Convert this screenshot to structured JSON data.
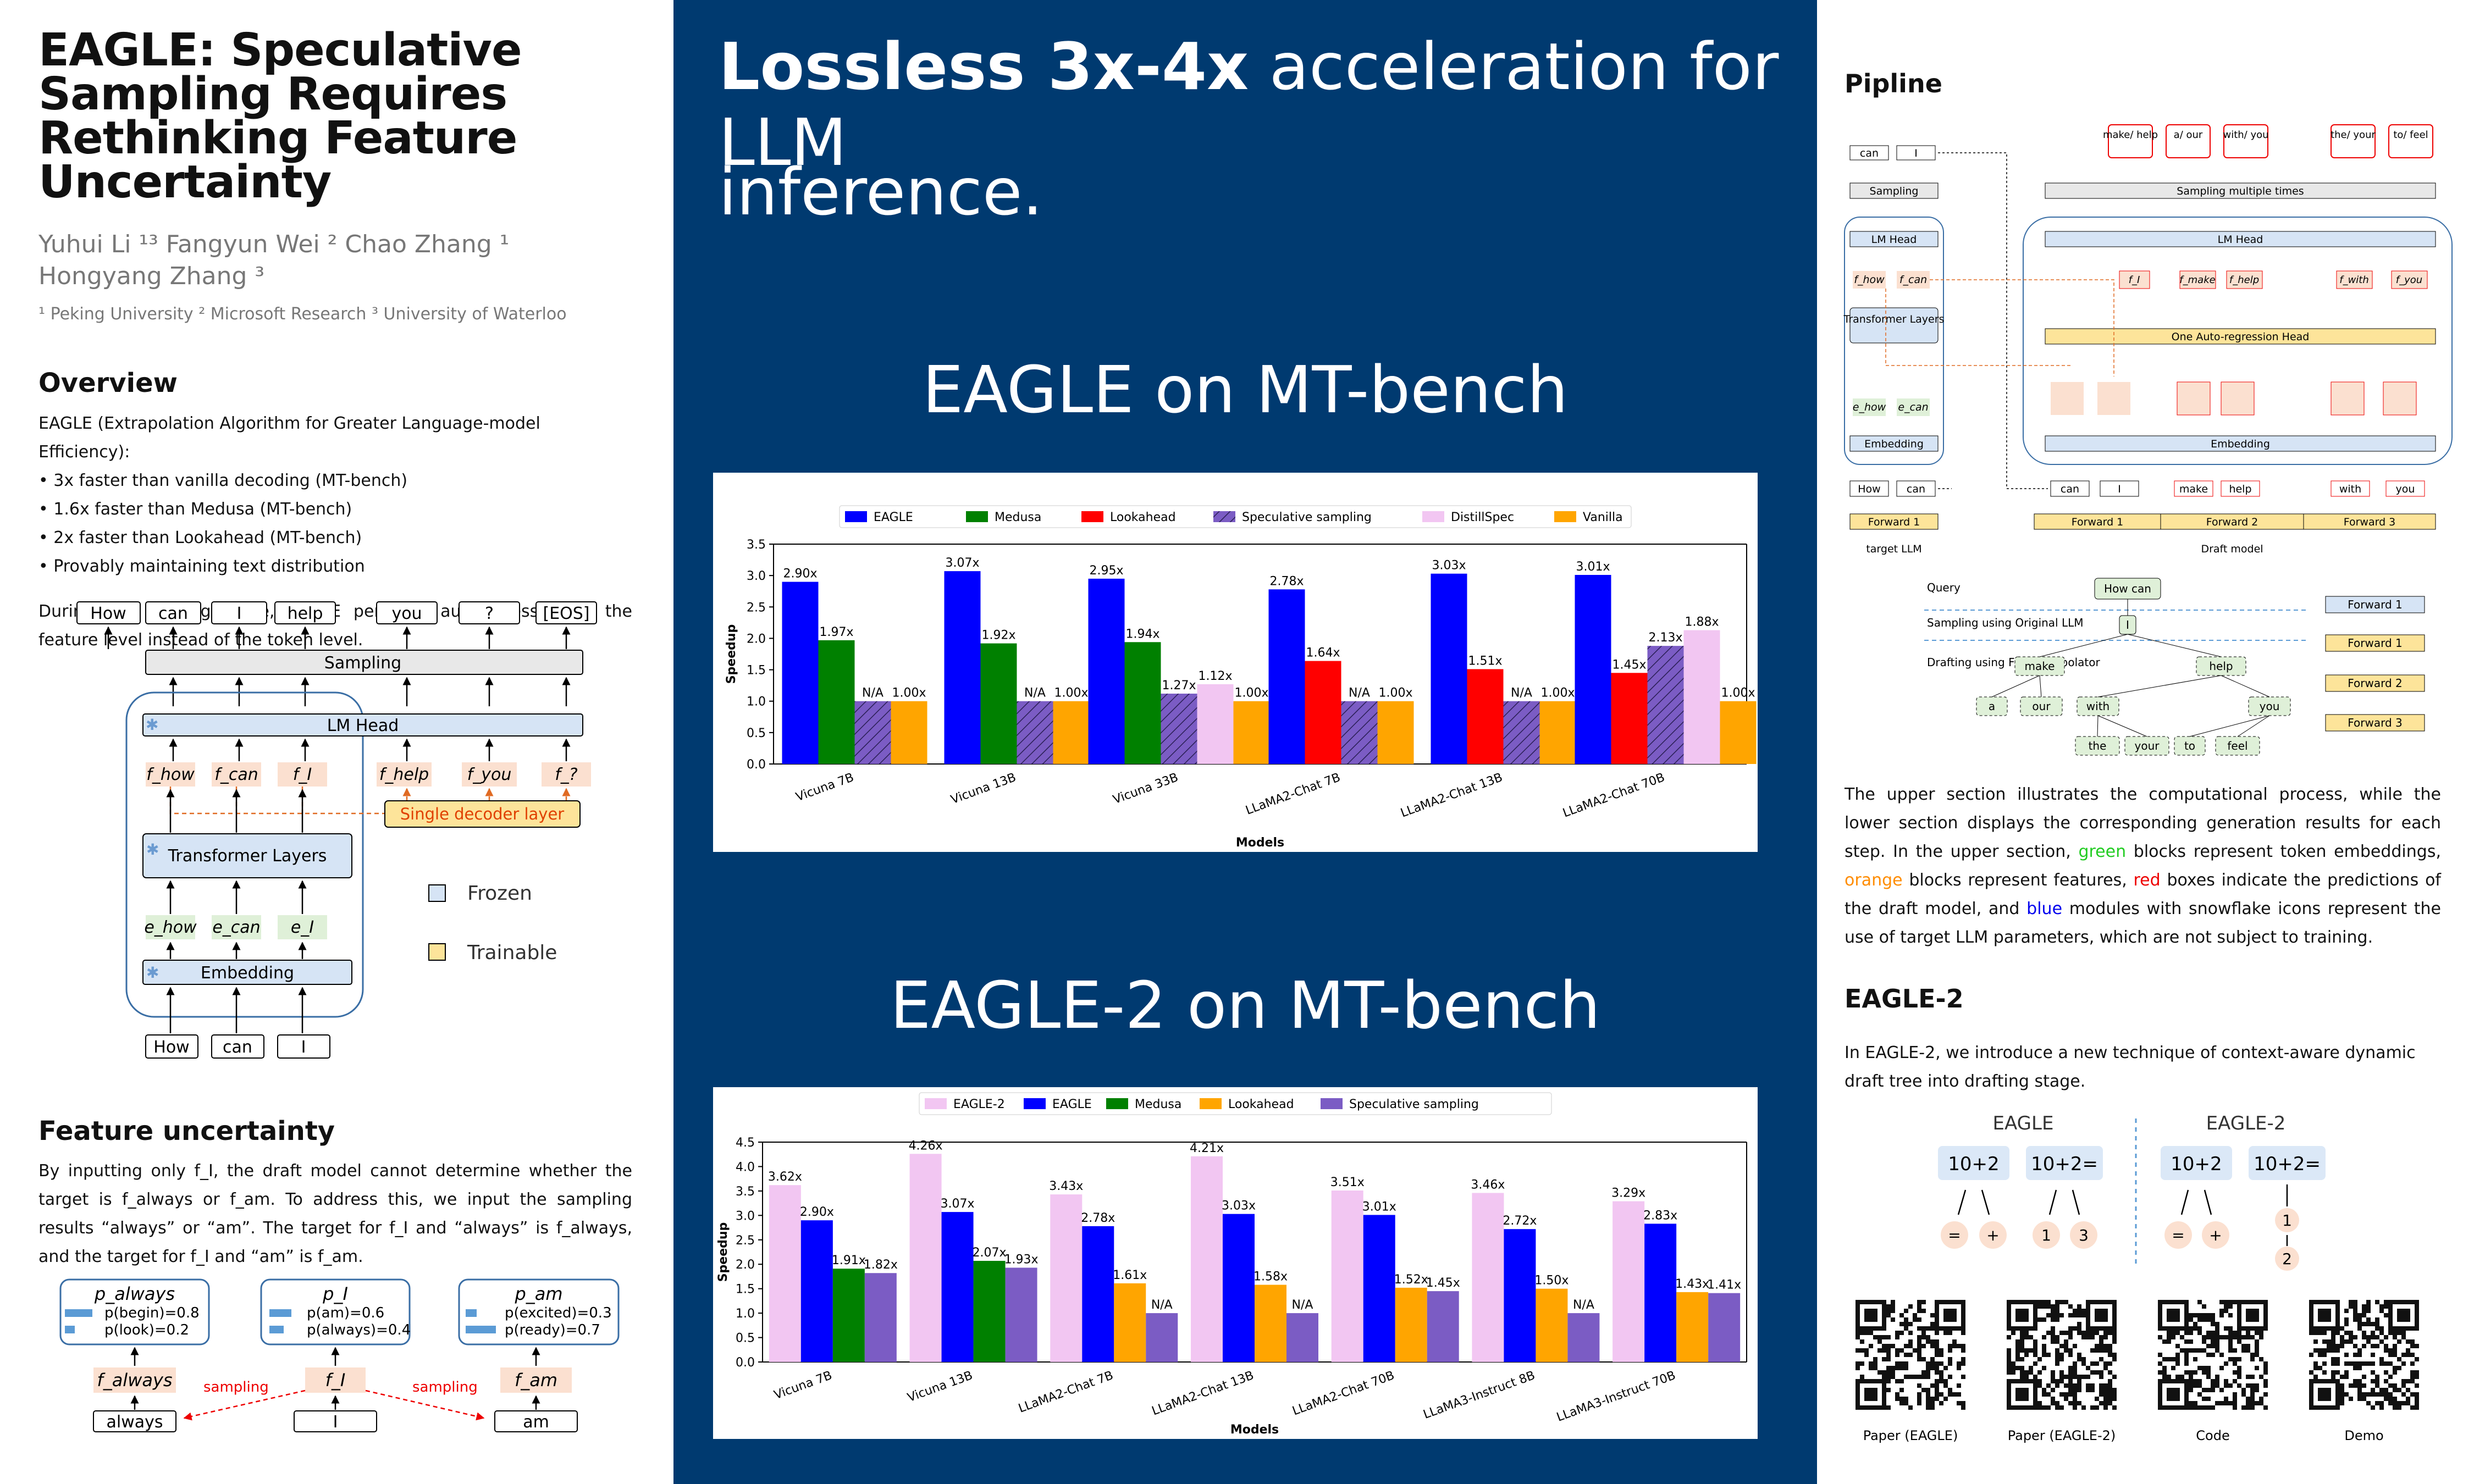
{
  "title": "EAGLE: Speculative Sampling Requires Rethinking Feature Uncertainty",
  "authors_line1": "Yuhui Li ¹³   Fangyun Wei ²   Chao Zhang ¹",
  "authors_line2": "Hongyang Zhang ³",
  "affiliations": "¹ Peking University  ² Microsoft Research  ³ University of Waterloo",
  "overview": {
    "heading": "Overview",
    "intro": "EAGLE (Extrapolation Algorithm for Greater Language-model Efficiency):",
    "bullets": [
      "• 3x faster than vanilla decoding (MT-bench)",
      "• 1.6x faster than Medusa (MT-bench)",
      "• 2x faster than Lookahead (MT-bench)",
      "• Provably maintaining text distribution"
    ],
    "para": "During the drafting stage, EAGLE performs autoregression at the feature level instead of the token level.",
    "fig": {
      "top_tokens": [
        "How",
        "can",
        "I",
        "help",
        "you",
        "?",
        "[EOS]"
      ],
      "sampling": "Sampling",
      "lm_head": "LM Head",
      "features": [
        "f_how",
        "f_can",
        "f_I",
        "f_help",
        "f_you",
        "f_?"
      ],
      "decoder": "Single decoder layer",
      "transformer": "Transformer Layers",
      "embeds": [
        "e_how",
        "e_can",
        "e_I"
      ],
      "embedding": "Embedding",
      "inputs": [
        "How",
        "can",
        "I"
      ],
      "legend_frozen": "Frozen",
      "legend_trainable": "Trainable"
    }
  },
  "feature_uncertainty": {
    "heading": "Feature uncertainty",
    "text": "By inputting only f_I, the draft model cannot determine whether the target is f_always or f_am. To address this, we input the sampling results “always” or “am”. The target for f_I and “always” is f_always, and the target for f_I and “am” is f_am.",
    "boxes": [
      {
        "title": "p_always",
        "rows": [
          "p(begin)=0.8",
          "p(look)=0.2"
        ]
      },
      {
        "title": "p_I",
        "rows": [
          "p(am)=0.6",
          "p(always)=0.4"
        ]
      },
      {
        "title": "p_am",
        "rows": [
          "p(excited)=0.3",
          "p(ready)=0.7"
        ]
      }
    ],
    "feats": [
      "f_always",
      "f_I",
      "f_am"
    ],
    "tokens": [
      "always",
      "I",
      "am"
    ],
    "sampling": "sampling"
  },
  "mid": {
    "headline_bold": "Lossless 3x-4x",
    "headline_rest": " acceleration for LLM",
    "headline_line2": "inference.",
    "chart1_title": "EAGLE on MT-bench",
    "chart2_title": "EAGLE-2 on MT-bench"
  },
  "chart_data": [
    {
      "type": "bar",
      "categories": [
        "Vicuna 7B",
        "Vicuna 13B",
        "Vicuna 33B",
        "LLaMA2-Chat 7B",
        "LLaMA2-Chat 13B",
        "LLaMA2-Chat 70B"
      ],
      "series": [
        {
          "name": "EAGLE",
          "color": "#0000ff",
          "values": [
            2.9,
            3.07,
            2.95,
            2.78,
            3.03,
            3.01
          ]
        },
        {
          "name": "Medusa",
          "color": "#008000",
          "values": [
            1.97,
            1.92,
            1.94,
            null,
            null,
            null
          ]
        },
        {
          "name": "Lookahead",
          "color": "#ff0000",
          "values": [
            null,
            null,
            null,
            1.64,
            1.51,
            1.45
          ]
        },
        {
          "name": "Speculative sampling",
          "color": "#7b5cc4",
          "hatch": true,
          "values": [
            1.0,
            1.0,
            1.12,
            1.0,
            1.0,
            1.88
          ]
        },
        {
          "name": "DistillSpec",
          "color": "#f2c6f2",
          "values": [
            null,
            null,
            1.27,
            null,
            null,
            2.13
          ]
        },
        {
          "name": "Vanilla",
          "color": "#ffa500",
          "values": [
            1.0,
            1.0,
            1.0,
            1.0,
            1.0,
            1.0
          ]
        }
      ],
      "labels": [
        [
          "2.90x",
          "1.97x",
          "N/A",
          "1.00x"
        ],
        [
          "3.07x",
          "1.92x",
          "N/A",
          "1.00x"
        ],
        [
          "2.95x",
          "1.94x",
          "1.27x",
          "1.12x",
          "1.00x"
        ],
        [
          "2.78x",
          "1.64x",
          "N/A",
          "1.00x"
        ],
        [
          "3.03x",
          "1.51x",
          "N/A",
          "1.00x"
        ],
        [
          "3.01x",
          "1.45x",
          "2.13x",
          "1.88x",
          "1.00x"
        ]
      ],
      "xlabel": "Models",
      "ylabel": "Speedup",
      "ylim": [
        0,
        3.5
      ],
      "yticks": [
        "0.0",
        "0.5",
        "1.0",
        "1.5",
        "2.0",
        "2.5",
        "3.0",
        "3.5"
      ],
      "legend": "top"
    },
    {
      "type": "bar",
      "categories": [
        "Vicuna 7B",
        "Vicuna 13B",
        "LLaMA2-Chat 7B",
        "LLaMA2-Chat 13B",
        "LLaMA2-Chat 70B",
        "LLaMA3-Instruct 8B",
        "LLaMA3-Instruct 70B"
      ],
      "series": [
        {
          "name": "EAGLE-2",
          "color": "#f2c6f2",
          "values": [
            3.62,
            4.26,
            3.43,
            4.21,
            3.51,
            3.46,
            3.29
          ]
        },
        {
          "name": "EAGLE",
          "color": "#0000ff",
          "values": [
            2.9,
            3.07,
            2.78,
            3.03,
            3.01,
            2.72,
            2.83
          ]
        },
        {
          "name": "Medusa",
          "color": "#008000",
          "values": [
            1.91,
            2.07,
            null,
            null,
            null,
            null,
            null
          ]
        },
        {
          "name": "Lookahead",
          "color": "#ffa500",
          "values": [
            null,
            null,
            1.61,
            1.58,
            1.52,
            1.5,
            1.43
          ]
        },
        {
          "name": "Speculative sampling",
          "color": "#7b5cc4",
          "values": [
            1.82,
            1.93,
            1.0,
            1.0,
            1.45,
            1.0,
            1.41
          ]
        }
      ],
      "labels": [
        [
          "3.62x",
          "2.90x",
          "1.91x",
          "1.82x"
        ],
        [
          "4.26x",
          "3.07x",
          "2.07x",
          "1.93x"
        ],
        [
          "3.43x",
          "2.78x",
          "1.61x",
          "N/A"
        ],
        [
          "4.21x",
          "3.03x",
          "1.58x",
          "N/A"
        ],
        [
          "3.51x",
          "3.01x",
          "1.52x",
          "1.45x"
        ],
        [
          "3.46x",
          "2.72x",
          "1.50x",
          "N/A"
        ],
        [
          "3.29x",
          "2.83x",
          "1.43x",
          "1.41x"
        ]
      ],
      "xlabel": "Models",
      "ylabel": "Speedup",
      "ylim": [
        0,
        4.5
      ],
      "yticks": [
        "0.0",
        "0.5",
        "1.0",
        "1.5",
        "2.0",
        "2.5",
        "3.0",
        "3.5",
        "4.0",
        "4.5"
      ],
      "legend": "top"
    }
  ],
  "right": {
    "pipeline_heading": "Pipline",
    "pipe": {
      "target_llm": "target LLM",
      "draft_model": "Draft model",
      "sampling": "Sampling",
      "sampling_multi": "Sampling multiple times",
      "lm_head": "LM Head",
      "transformer": "Transformer Layers",
      "one_head": "One Auto-regression Head",
      "embedding": "Embedding",
      "forward1": "Forward 1",
      "forward2": "Forward 2",
      "forward3": "Forward 3",
      "target_tokens_out": [
        "can",
        "I"
      ],
      "target_inputs": [
        "How",
        "can"
      ],
      "draft_inputs": [
        "can",
        "I",
        "make",
        "help",
        "with",
        "you"
      ],
      "draft_outputs": [
        "make/ help",
        "a/ our",
        "with/ you",
        "the/ your",
        "to/ feel"
      ],
      "target_feats": [
        "f_how",
        "f_can"
      ],
      "target_embeds": [
        "e_how",
        "e_can"
      ],
      "draft_feats_top": [
        "f_I",
        "f_make",
        "f_help",
        "f_with",
        "f_you"
      ]
    },
    "tree": {
      "query": "Query",
      "sampling_orig": "Sampling using Original LLM",
      "drafting": "Drafting using FeatExtrapolator",
      "root": "How can",
      "l1": "I",
      "l2": [
        "make",
        "help"
      ],
      "l3": [
        "a",
        "our",
        "with",
        "you"
      ],
      "l4": [
        "the",
        "your",
        "to",
        "feel"
      ],
      "forwards": [
        "Forward 1",
        "Forward 1",
        "Forward 2",
        "Forward 3"
      ]
    },
    "explain_pre": "The upper section illustrates the computational process, while the lower section displays the corresponding generation results for each step. In the upper section, ",
    "green": "green",
    "explain_a": " blocks represent token embeddings, ",
    "orange": "orange",
    "explain_b": " blocks represent features, ",
    "red": "red",
    "explain_c": " boxes indicate the predictions of the draft model, and ",
    "blue": "blue",
    "explain_d": " modules with snowflake icons represent the use of target LLM parameters, which are not subject to training.",
    "eagle2_heading": "EAGLE-2",
    "eagle2_text": "In EAGLE-2, we introduce a new technique of context-aware dynamic draft tree into drafting stage.",
    "cmp": {
      "left_title": "EAGLE",
      "right_title": "EAGLE-2",
      "boxes": [
        "10+2",
        "10+2=",
        "10+2",
        "10+2="
      ],
      "left_children": [
        "=",
        "+",
        "1",
        "3"
      ],
      "right_children": [
        "=",
        "+",
        "1",
        "2"
      ]
    },
    "qr_labels": [
      "Paper (EAGLE)",
      "Paper (EAGLE-2)",
      "Code",
      "Demo"
    ]
  }
}
